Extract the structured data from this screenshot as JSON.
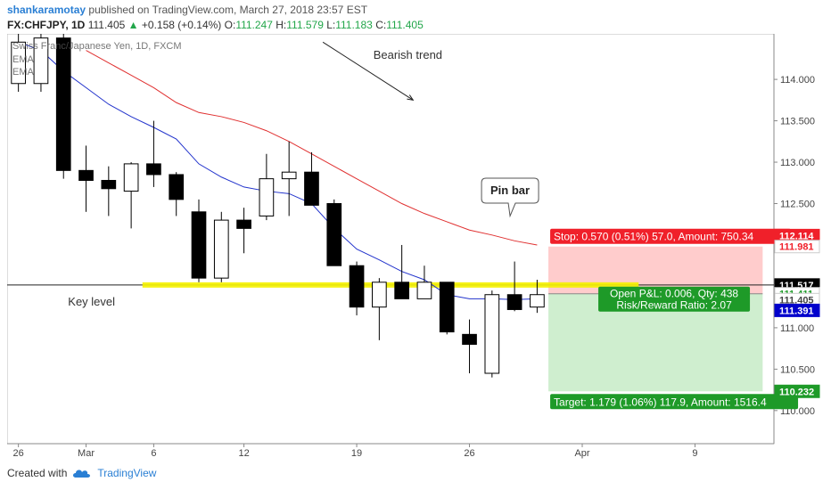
{
  "header": {
    "author": "shankaramotay",
    "published_text": "published on TradingView.com, March 27, 2018 23:57 EST",
    "symbol": "FX:CHFJPY, 1D",
    "last": "111.405",
    "change_arrow": "▲",
    "change": "+0.158 (+0.14%)",
    "o_label": "O:",
    "o_value": "111.247",
    "h_label": "H:",
    "h_value": "111.579",
    "l_label": "L:",
    "l_value": "111.183",
    "c_label": "C:",
    "c_value": "111.405"
  },
  "footer": {
    "created_with": "Created with",
    "brand": "TradingView"
  },
  "colors": {
    "bull_fill": "#ffffff",
    "bear_fill": "#000000",
    "ema_fast": "#2233cc",
    "ema_slow": "#e03030",
    "key_level": "#f5f200",
    "stop_zone": "#ffcccc",
    "target_zone": "#cfeecf",
    "stop_label_bg": "#f0202a",
    "target_label_bg": "#1e9a28",
    "price_current_bg": "#0000cc"
  },
  "chart_data": {
    "type": "candlestick",
    "title": "Swiss Franc/Japanese Yen, 1D, FXCM",
    "legend": [
      "EMA",
      "EMA"
    ],
    "legend_placement": "top-left",
    "ylim": [
      109.6,
      114.55
    ],
    "y_ticks": [
      "114.000",
      "113.500",
      "113.000",
      "112.500",
      "112.000",
      "111.500",
      "111.000",
      "110.500",
      "110.000"
    ],
    "x_ticks": [
      {
        "label": "26",
        "bar": 0
      },
      {
        "label": "Mar",
        "bar": 3
      },
      {
        "label": "6",
        "bar": 6
      },
      {
        "label": "12",
        "bar": 10
      },
      {
        "label": "19",
        "bar": 15
      },
      {
        "label": "26",
        "bar": 20
      },
      {
        "label": "Apr",
        "bar": 25
      },
      {
        "label": "9",
        "bar": 30
      }
    ],
    "x_domain_bars": [
      -0.5,
      33.5
    ],
    "candles": [
      {
        "o": 113.95,
        "h": 114.55,
        "l": 113.85,
        "c": 114.45
      },
      {
        "o": 113.95,
        "h": 114.6,
        "l": 113.85,
        "c": 114.5
      },
      {
        "o": 114.5,
        "h": 114.6,
        "l": 112.8,
        "c": 112.9
      },
      {
        "o": 112.9,
        "h": 113.2,
        "l": 112.4,
        "c": 112.78
      },
      {
        "o": 112.78,
        "h": 112.95,
        "l": 112.35,
        "c": 112.68
      },
      {
        "o": 112.65,
        "h": 113.0,
        "l": 112.2,
        "c": 112.98
      },
      {
        "o": 112.98,
        "h": 113.5,
        "l": 112.7,
        "c": 112.85
      },
      {
        "o": 112.85,
        "h": 112.88,
        "l": 112.35,
        "c": 112.55
      },
      {
        "o": 112.4,
        "h": 112.55,
        "l": 111.55,
        "c": 111.6
      },
      {
        "o": 111.6,
        "h": 112.4,
        "l": 111.55,
        "c": 112.3
      },
      {
        "o": 112.3,
        "h": 112.45,
        "l": 111.9,
        "c": 112.2
      },
      {
        "o": 112.35,
        "h": 113.1,
        "l": 112.3,
        "c": 112.8
      },
      {
        "o": 112.8,
        "h": 113.25,
        "l": 112.35,
        "c": 112.88
      },
      {
        "o": 112.88,
        "h": 113.12,
        "l": 112.48,
        "c": 112.48
      },
      {
        "o": 112.5,
        "h": 112.55,
        "l": 111.75,
        "c": 111.75
      },
      {
        "o": 111.75,
        "h": 111.8,
        "l": 111.15,
        "c": 111.25
      },
      {
        "o": 111.25,
        "h": 111.6,
        "l": 110.85,
        "c": 111.55
      },
      {
        "o": 111.55,
        "h": 112.0,
        "l": 111.35,
        "c": 111.35
      },
      {
        "o": 111.35,
        "h": 111.75,
        "l": 111.35,
        "c": 111.55
      },
      {
        "o": 111.55,
        "h": 111.55,
        "l": 110.92,
        "c": 110.95
      },
      {
        "o": 110.92,
        "h": 111.1,
        "l": 110.45,
        "c": 110.8
      },
      {
        "o": 110.45,
        "h": 111.45,
        "l": 110.4,
        "c": 111.4
      },
      {
        "o": 111.4,
        "h": 111.8,
        "l": 111.2,
        "c": 111.22
      },
      {
        "o": 111.25,
        "h": 111.58,
        "l": 111.18,
        "c": 111.4
      }
    ],
    "ema_fast": [
      114.45,
      114.35,
      114.1,
      113.9,
      113.7,
      113.55,
      113.42,
      113.28,
      112.98,
      112.82,
      112.7,
      112.65,
      112.62,
      112.5,
      112.2,
      111.95,
      111.82,
      111.68,
      111.58,
      111.4,
      111.35,
      111.35,
      111.34,
      111.35
    ],
    "ema_slow_start_bar": 3,
    "ema_slow": [
      114.35,
      114.2,
      114.05,
      113.9,
      113.72,
      113.6,
      113.55,
      113.48,
      113.38,
      113.25,
      113.1,
      112.95,
      112.8,
      112.65,
      112.5,
      112.38,
      112.28,
      112.18,
      112.12,
      112.05,
      112.0
    ],
    "key_level": {
      "price": 111.517,
      "label": "Key level",
      "from_bar": 5.5,
      "to_bar": 27.5
    },
    "horizontal_line": 111.517,
    "trend_arrow": {
      "label": "Bearish trend",
      "from": [
        13.5,
        114.45
      ],
      "to": [
        17.5,
        113.75
      ]
    },
    "callout": {
      "label": "Pin bar",
      "bar": 21.8,
      "price": 112.35
    },
    "position": {
      "entry": 111.411,
      "stop": 111.981,
      "target": 110.232,
      "from_bar": 23.5,
      "to_bar": 33,
      "stop_label": "Stop: 0.570 (0.51%) 57.0, Amount: 750.34",
      "target_label": "Target: 1.179 (1.06%) 117.9, Amount: 1516.4",
      "pnl_label": "Open P&L: 0.006, Qty: 438",
      "rr_label": "Risk/Reward Ratio: 2.07"
    },
    "price_labels": [
      {
        "text": "112.114",
        "price": 112.114,
        "bg": "#f0202a",
        "fg": "#ffffff"
      },
      {
        "text": "111.981",
        "price": 111.981,
        "bg": "#ffffff",
        "fg": "#f0202a"
      },
      {
        "text": "111.517",
        "price": 111.517,
        "bg": "#000000",
        "fg": "#ffffff"
      },
      {
        "text": "111.411",
        "price": 111.411,
        "bg": "#ffffff",
        "fg": "#1e9a28"
      },
      {
        "text": "111.405",
        "price": 111.34,
        "bg": "#ffffff",
        "fg": "#444444"
      },
      {
        "text": "111.391",
        "price": 111.21,
        "bg": "#0000cc",
        "fg": "#ffffff"
      },
      {
        "text": "110.232",
        "price": 110.232,
        "bg": "#1e9a28",
        "fg": "#ffffff"
      }
    ]
  }
}
